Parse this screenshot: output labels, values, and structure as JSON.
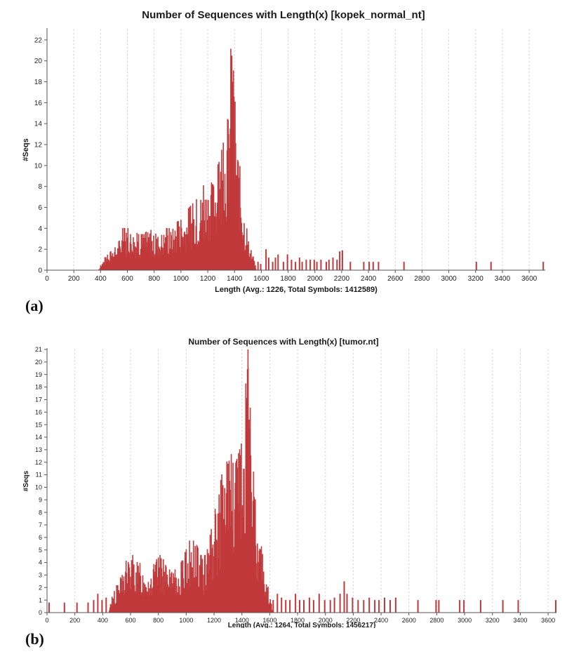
{
  "chart_data": [
    {
      "type": "bar",
      "panel_label": "(a)",
      "title": "Number of Sequences with Length(x) [kopek_normal_nt]",
      "xlabel": "Length (Avg.: 1226, Total Symbols: 1412589)",
      "ylabel": "#Seqs",
      "xlim": [
        0,
        3720
      ],
      "ylim": [
        0,
        23
      ],
      "xticks": [
        0,
        200,
        400,
        600,
        800,
        1000,
        1200,
        1400,
        1600,
        1800,
        2000,
        2200,
        2400,
        2600,
        2800,
        3000,
        3200,
        3400,
        3600
      ],
      "yticks": [
        0,
        2,
        4,
        6,
        8,
        10,
        12,
        14,
        16,
        18,
        20,
        22
      ],
      "grid": "vertical dashed",
      "color": "#c0393b",
      "profile": [
        [
          380,
          0
        ],
        [
          420,
          1
        ],
        [
          460,
          1.4
        ],
        [
          500,
          2
        ],
        [
          540,
          2.5
        ],
        [
          560,
          3.5
        ],
        [
          620,
          3.5
        ],
        [
          680,
          3
        ],
        [
          720,
          3
        ],
        [
          760,
          3.5
        ],
        [
          800,
          3
        ],
        [
          840,
          3.2
        ],
        [
          880,
          3.5
        ],
        [
          920,
          3.5
        ],
        [
          960,
          4
        ],
        [
          1000,
          4.2
        ],
        [
          1040,
          5
        ],
        [
          1080,
          5.5
        ],
        [
          1120,
          6
        ],
        [
          1160,
          7
        ],
        [
          1200,
          7.5
        ],
        [
          1240,
          8
        ],
        [
          1280,
          9
        ],
        [
          1320,
          11
        ],
        [
          1340,
          13
        ],
        [
          1360,
          16
        ],
        [
          1375,
          20.5
        ],
        [
          1390,
          16
        ],
        [
          1410,
          12
        ],
        [
          1430,
          10
        ],
        [
          1450,
          7
        ],
        [
          1480,
          4
        ],
        [
          1510,
          2
        ],
        [
          1540,
          1
        ],
        [
          1560,
          0
        ]
      ],
      "sparse": [
        [
          1570,
          0.8
        ],
        [
          1590,
          0.6
        ],
        [
          1630,
          2
        ],
        [
          1650,
          1.2
        ],
        [
          1680,
          0.8
        ],
        [
          1700,
          1.2
        ],
        [
          1720,
          1.5
        ],
        [
          1760,
          0.8
        ],
        [
          1790,
          1.5
        ],
        [
          1820,
          1
        ],
        [
          1850,
          0.8
        ],
        [
          1880,
          1.2
        ],
        [
          1900,
          0.8
        ],
        [
          1930,
          1
        ],
        [
          1960,
          1
        ],
        [
          1990,
          1
        ],
        [
          2010,
          0.8
        ],
        [
          2040,
          1
        ],
        [
          2080,
          0.8
        ],
        [
          2100,
          1
        ],
        [
          2130,
          1.2
        ],
        [
          2160,
          1
        ],
        [
          2180,
          1.8
        ],
        [
          2200,
          1.9
        ],
        [
          2260,
          0.8
        ],
        [
          2360,
          0.8
        ],
        [
          2400,
          0.8
        ],
        [
          2430,
          0.8
        ],
        [
          2470,
          0.8
        ],
        [
          2660,
          0.8
        ],
        [
          3200,
          0.8
        ],
        [
          3310,
          0.8
        ],
        [
          3700,
          0.8
        ]
      ]
    },
    {
      "type": "bar",
      "panel_label": "(b)",
      "title": "Number of Sequences with Length(x) [tumor.nt]",
      "xlabel": "Length (Avg.: 1264, Total Symbols: 1456217)",
      "ylabel": "#Seqs",
      "xlim": [
        0,
        3660
      ],
      "ylim": [
        0,
        21
      ],
      "xticks": [
        0,
        200,
        400,
        600,
        800,
        1000,
        1200,
        1400,
        1600,
        1800,
        2000,
        2200,
        2400,
        2600,
        2800,
        3000,
        3200,
        3400,
        3600
      ],
      "yticks": [
        0,
        1,
        2,
        3,
        4,
        5,
        6,
        7,
        8,
        9,
        10,
        11,
        12,
        13,
        14,
        15,
        16,
        17,
        18,
        19,
        20,
        21
      ],
      "grid": "vertical dashed",
      "color": "#c0393b",
      "profile": [
        [
          440,
          0
        ],
        [
          460,
          1
        ],
        [
          500,
          2
        ],
        [
          540,
          3
        ],
        [
          580,
          4
        ],
        [
          620,
          4
        ],
        [
          660,
          3.5
        ],
        [
          700,
          3
        ],
        [
          740,
          3
        ],
        [
          780,
          4
        ],
        [
          820,
          4
        ],
        [
          860,
          3
        ],
        [
          900,
          3
        ],
        [
          940,
          3
        ],
        [
          980,
          4
        ],
        [
          1020,
          5
        ],
        [
          1060,
          5
        ],
        [
          1100,
          4
        ],
        [
          1140,
          4
        ],
        [
          1180,
          6
        ],
        [
          1200,
          7
        ],
        [
          1240,
          9
        ],
        [
          1280,
          11
        ],
        [
          1300,
          12
        ],
        [
          1340,
          10
        ],
        [
          1370,
          11
        ],
        [
          1400,
          12
        ],
        [
          1420,
          15
        ],
        [
          1440,
          19.5
        ],
        [
          1460,
          14
        ],
        [
          1480,
          11
        ],
        [
          1500,
          8
        ],
        [
          1530,
          5
        ],
        [
          1560,
          3
        ],
        [
          1590,
          1.5
        ],
        [
          1620,
          0
        ]
      ],
      "sparse": [
        [
          10,
          0.8
        ],
        [
          120,
          0.8
        ],
        [
          210,
          0.8
        ],
        [
          290,
          0.8
        ],
        [
          330,
          1
        ],
        [
          360,
          1.5
        ],
        [
          390,
          1
        ],
        [
          420,
          1.2
        ],
        [
          1620,
          1
        ],
        [
          1650,
          1.5
        ],
        [
          1680,
          1.2
        ],
        [
          1710,
          1
        ],
        [
          1740,
          1
        ],
        [
          1780,
          1.5
        ],
        [
          1810,
          1
        ],
        [
          1840,
          1
        ],
        [
          1880,
          1.2
        ],
        [
          1910,
          1
        ],
        [
          1950,
          1.5
        ],
        [
          1990,
          1
        ],
        [
          2030,
          1
        ],
        [
          2060,
          1.2
        ],
        [
          2100,
          1.5
        ],
        [
          2130,
          2.5
        ],
        [
          2150,
          1.5
        ],
        [
          2190,
          1.2
        ],
        [
          2230,
          1
        ],
        [
          2270,
          1
        ],
        [
          2310,
          1.2
        ],
        [
          2350,
          1
        ],
        [
          2380,
          1
        ],
        [
          2420,
          1.2
        ],
        [
          2460,
          1
        ],
        [
          2500,
          1.2
        ],
        [
          2660,
          1
        ],
        [
          2790,
          1
        ],
        [
          2810,
          1
        ],
        [
          2960,
          1
        ],
        [
          2990,
          1
        ],
        [
          3110,
          1
        ],
        [
          3270,
          1
        ],
        [
          3380,
          1
        ],
        [
          3650,
          1
        ]
      ]
    }
  ]
}
